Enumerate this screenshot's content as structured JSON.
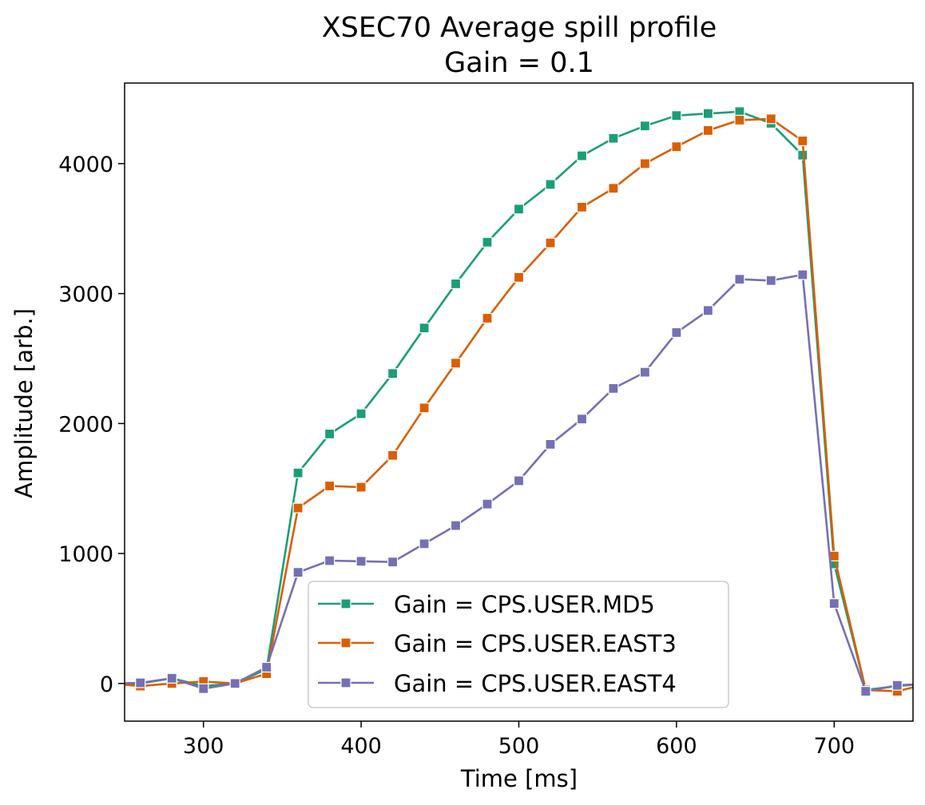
{
  "chart_data": {
    "type": "line",
    "title": "XSEC70 Average spill profile",
    "subtitle": "Gain = 0.1",
    "xlabel": "Time [ms]",
    "ylabel": "Amplitude [arb.]",
    "xlim": [
      250,
      750
    ],
    "ylim": [
      -290,
      4620
    ],
    "xticks": [
      300,
      400,
      500,
      600,
      700
    ],
    "yticks": [
      0,
      1000,
      2000,
      3000,
      4000
    ],
    "grid": false,
    "legend_position": "bottom-center",
    "marker": "square",
    "x": [
      240,
      260,
      280,
      300,
      320,
      340,
      360,
      380,
      400,
      420,
      440,
      460,
      480,
      500,
      520,
      540,
      560,
      580,
      600,
      620,
      640,
      660,
      680,
      700,
      720,
      740,
      760
    ],
    "series": [
      {
        "name": "Gain = CPS.USER.MD5",
        "color": "#1b9e77",
        "values": [
          0,
          0,
          40,
          -20,
          0,
          110,
          1620,
          1920,
          2075,
          2385,
          2735,
          3075,
          3395,
          3650,
          3840,
          4060,
          4195,
          4290,
          4370,
          4385,
          4400,
          4310,
          4065,
          920,
          -50,
          -20,
          0
        ]
      },
      {
        "name": "Gain = CPS.USER.EAST3",
        "color": "#d95f02",
        "values": [
          0,
          -20,
          0,
          15,
          0,
          75,
          1350,
          1520,
          1510,
          1755,
          2120,
          2465,
          2810,
          3125,
          3390,
          3665,
          3810,
          4000,
          4130,
          4255,
          4335,
          4345,
          4175,
          980,
          -50,
          -60,
          0
        ]
      },
      {
        "name": "Gain = CPS.USER.EAST4",
        "color": "#7570b3",
        "values": [
          0,
          5,
          40,
          -40,
          0,
          125,
          855,
          945,
          940,
          935,
          1075,
          1215,
          1380,
          1560,
          1840,
          2035,
          2270,
          2395,
          2700,
          2870,
          3110,
          3100,
          3145,
          615,
          -60,
          -15,
          0
        ]
      }
    ]
  }
}
